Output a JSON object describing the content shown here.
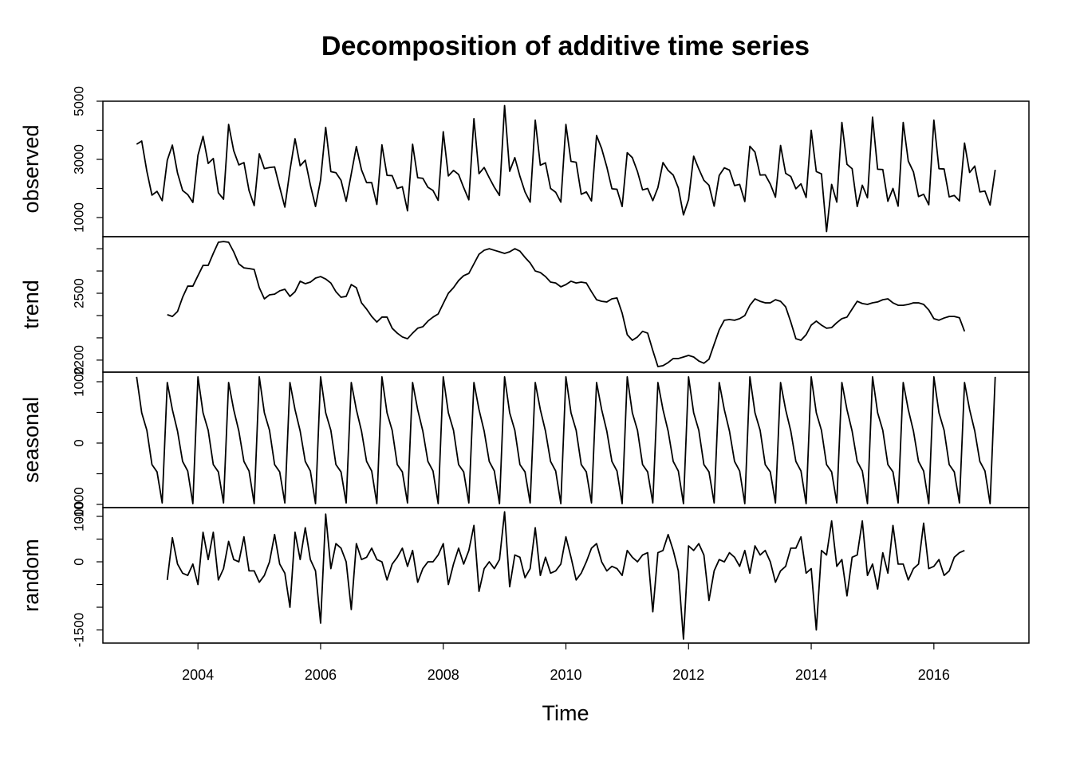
{
  "chart_data": {
    "type": "line",
    "title": "Decomposition of additive time series",
    "xlabel": "Time",
    "color": "#000000",
    "xlim": [
      2002.45,
      2017.55
    ],
    "xticks": [
      2004,
      2006,
      2008,
      2010,
      2012,
      2014,
      2016
    ],
    "x": [
      2003,
      2003.083,
      2003.167,
      2003.25,
      2003.333,
      2003.417,
      2003.5,
      2003.583,
      2003.667,
      2003.75,
      2003.833,
      2003.917,
      2004,
      2004.083,
      2004.167,
      2004.25,
      2004.333,
      2004.417,
      2004.5,
      2004.583,
      2004.667,
      2004.75,
      2004.833,
      2004.917,
      2005,
      2005.083,
      2005.167,
      2005.25,
      2005.333,
      2005.417,
      2005.5,
      2005.583,
      2005.667,
      2005.75,
      2005.833,
      2005.917,
      2006,
      2006.083,
      2006.167,
      2006.25,
      2006.333,
      2006.417,
      2006.5,
      2006.583,
      2006.667,
      2006.75,
      2006.833,
      2006.917,
      2007,
      2007.083,
      2007.167,
      2007.25,
      2007.333,
      2007.417,
      2007.5,
      2007.583,
      2007.667,
      2007.75,
      2007.833,
      2007.917,
      2008,
      2008.083,
      2008.167,
      2008.25,
      2008.333,
      2008.417,
      2008.5,
      2008.583,
      2008.667,
      2008.75,
      2008.833,
      2008.917,
      2009,
      2009.083,
      2009.167,
      2009.25,
      2009.333,
      2009.417,
      2009.5,
      2009.583,
      2009.667,
      2009.75,
      2009.833,
      2009.917,
      2010,
      2010.083,
      2010.167,
      2010.25,
      2010.333,
      2010.417,
      2010.5,
      2010.583,
      2010.667,
      2010.75,
      2010.833,
      2010.917,
      2011,
      2011.083,
      2011.167,
      2011.25,
      2011.333,
      2011.417,
      2011.5,
      2011.583,
      2011.667,
      2011.75,
      2011.833,
      2011.917,
      2012,
      2012.083,
      2012.167,
      2012.25,
      2012.333,
      2012.417,
      2012.5,
      2012.583,
      2012.667,
      2012.75,
      2012.833,
      2012.917,
      2013,
      2013.083,
      2013.167,
      2013.25,
      2013.333,
      2013.417,
      2013.5,
      2013.583,
      2013.667,
      2013.75,
      2013.833,
      2013.917,
      2014,
      2014.083,
      2014.167,
      2014.25,
      2014.333,
      2014.417,
      2014.5,
      2014.583,
      2014.667,
      2014.75,
      2014.833,
      2014.917,
      2015,
      2015.083,
      2015.167,
      2015.25,
      2015.333,
      2015.417,
      2015.5,
      2015.583,
      2015.667,
      2015.75,
      2015.833,
      2015.917,
      2016,
      2016.083,
      2016.167,
      2016.25,
      2016.333,
      2016.417,
      2016.5,
      2016.583,
      2016.667,
      2016.75,
      2016.833,
      2016.917,
      2017
    ],
    "panels": [
      {
        "ylabel": "observed",
        "ylim": [
          342,
          5000
        ],
        "yticks": [
          1000,
          3000,
          5000
        ],
        "yminorticks": [
          2000,
          4000
        ],
        "values": [
          3520,
          3630,
          2590,
          1770,
          1900,
          1580,
          2970,
          3490,
          2530,
          1930,
          1790,
          1520,
          3140,
          3790,
          2860,
          3030,
          1850,
          1630,
          4200,
          3300,
          2810,
          2890,
          1930,
          1410,
          3190,
          2680,
          2720,
          2740,
          2040,
          1360,
          2620,
          3710,
          2780,
          2970,
          2120,
          1380,
          2300,
          4100,
          2580,
          2540,
          2280,
          1560,
          2500,
          3440,
          2640,
          2200,
          2200,
          1450,
          3500,
          2450,
          2440,
          2000,
          2060,
          1230,
          3520,
          2370,
          2350,
          2040,
          1930,
          1590,
          3950,
          2430,
          2620,
          2480,
          2030,
          1610,
          4400,
          2510,
          2720,
          2370,
          2040,
          1760,
          4850,
          2590,
          3060,
          2420,
          1880,
          1530,
          4350,
          2800,
          2880,
          2000,
          1870,
          1530,
          4200,
          2930,
          2900,
          1800,
          1880,
          1570,
          3820,
          3370,
          2740,
          1990,
          1970,
          1380,
          3230,
          3060,
          2580,
          1950,
          2000,
          1580,
          2030,
          2890,
          2620,
          2460,
          2020,
          1090,
          1620,
          3110,
          2670,
          2280,
          2110,
          1390,
          2450,
          2710,
          2630,
          2100,
          2140,
          1550,
          3450,
          3250,
          2460,
          2470,
          2150,
          1700,
          3480,
          2520,
          2410,
          1990,
          2160,
          1690,
          4000,
          2580,
          2500,
          520,
          2140,
          1530,
          4270,
          2830,
          2680,
          1380,
          2110,
          1680,
          4450,
          2660,
          2650,
          1560,
          2000,
          1390,
          4270,
          2940,
          2570,
          1720,
          1800,
          1440,
          4350,
          2680,
          2670,
          1710,
          1760,
          1570,
          3560,
          2550,
          2770,
          1880,
          1910,
          1430,
          2640
        ]
      },
      {
        "ylabel": "trend",
        "ylim": [
          2146,
          2754
        ],
        "yticks": [
          2200,
          2500
        ],
        "yminorticks": [
          2300,
          2400,
          2600,
          2700
        ],
        "values": [
          null,
          null,
          null,
          null,
          null,
          null,
          2404,
          2396,
          2418,
          2482,
          2532,
          2532,
          2579,
          2625,
          2625,
          2679,
          2729,
          2732,
          2729,
          2686,
          2632,
          2614,
          2611,
          2607,
          2525,
          2475,
          2493,
          2496,
          2511,
          2518,
          2486,
          2507,
          2554,
          2543,
          2550,
          2568,
          2575,
          2564,
          2546,
          2507,
          2482,
          2486,
          2539,
          2525,
          2457,
          2429,
          2396,
          2371,
          2393,
          2393,
          2343,
          2321,
          2304,
          2296,
          2321,
          2343,
          2350,
          2375,
          2393,
          2407,
          2454,
          2500,
          2525,
          2557,
          2579,
          2589,
          2632,
          2675,
          2693,
          2700,
          2693,
          2686,
          2679,
          2686,
          2700,
          2689,
          2661,
          2636,
          2600,
          2593,
          2575,
          2550,
          2546,
          2529,
          2539,
          2554,
          2546,
          2550,
          2546,
          2507,
          2471,
          2464,
          2461,
          2475,
          2479,
          2411,
          2314,
          2289,
          2304,
          2329,
          2321,
          2243,
          2171,
          2175,
          2189,
          2207,
          2207,
          2214,
          2221,
          2214,
          2196,
          2186,
          2204,
          2271,
          2336,
          2379,
          2382,
          2379,
          2386,
          2400,
          2446,
          2475,
          2464,
          2457,
          2457,
          2471,
          2464,
          2439,
          2371,
          2296,
          2289,
          2314,
          2357,
          2375,
          2357,
          2343,
          2346,
          2368,
          2386,
          2393,
          2429,
          2464,
          2454,
          2450,
          2457,
          2461,
          2471,
          2475,
          2457,
          2446,
          2446,
          2450,
          2457,
          2457,
          2450,
          2425,
          2386,
          2379,
          2389,
          2396,
          2396,
          2390,
          2329,
          null,
          null,
          null,
          null,
          null,
          null
        ]
      },
      {
        "ylabel": "seasonal",
        "ylim": [
          -1052,
          1156
        ],
        "yticks": [
          -1000,
          0,
          1000
        ],
        "yminorticks": [
          -500,
          500
        ],
        "values": [
          1080,
          494,
          208,
          -350,
          -470,
          -975,
          987,
          545,
          195,
          -300,
          -455,
          -987,
          1080,
          494,
          208,
          -350,
          -470,
          -975,
          987,
          545,
          195,
          -300,
          -455,
          -987,
          1080,
          494,
          208,
          -350,
          -470,
          -975,
          987,
          545,
          195,
          -300,
          -455,
          -987,
          1080,
          494,
          208,
          -350,
          -470,
          -975,
          987,
          545,
          195,
          -300,
          -455,
          -987,
          1080,
          494,
          208,
          -350,
          -470,
          -975,
          987,
          545,
          195,
          -300,
          -455,
          -987,
          1080,
          494,
          208,
          -350,
          -470,
          -975,
          987,
          545,
          195,
          -300,
          -455,
          -987,
          1080,
          494,
          208,
          -350,
          -470,
          -975,
          987,
          545,
          195,
          -300,
          -455,
          -987,
          1080,
          494,
          208,
          -350,
          -470,
          -975,
          987,
          545,
          195,
          -300,
          -455,
          -987,
          1080,
          494,
          208,
          -350,
          -470,
          -975,
          987,
          545,
          195,
          -300,
          -455,
          -987,
          1080,
          494,
          208,
          -350,
          -470,
          -975,
          987,
          545,
          195,
          -300,
          -455,
          -987,
          1080,
          494,
          208,
          -350,
          -470,
          -975,
          987,
          545,
          195,
          -300,
          -455,
          -987,
          1080,
          494,
          208,
          -350,
          -470,
          -975,
          987,
          545,
          195,
          -300,
          -455,
          -987,
          1080,
          494,
          208,
          -350,
          -470,
          -975,
          987,
          545,
          195,
          -300,
          -455,
          -987,
          1080,
          494,
          208,
          -350,
          -470,
          -975,
          987,
          545,
          195,
          -300,
          -455,
          -987,
          1080
        ]
      },
      {
        "ylabel": "random",
        "ylim": [
          -1789,
          1193
        ],
        "yticks": [
          -1500,
          0,
          1000
        ],
        "yminorticks": [
          -1000,
          -500,
          500
        ],
        "values": [
          null,
          null,
          null,
          null,
          null,
          null,
          -400,
          530,
          -50,
          -250,
          -300,
          -50,
          -500,
          650,
          50,
          650,
          -400,
          -150,
          450,
          50,
          0,
          550,
          -200,
          -200,
          -450,
          -300,
          0,
          600,
          -50,
          -250,
          -1000,
          650,
          50,
          750,
          50,
          -200,
          -1350,
          1050,
          -150,
          400,
          300,
          0,
          -1050,
          400,
          50,
          100,
          300,
          50,
          0,
          -400,
          -50,
          100,
          300,
          -100,
          250,
          -450,
          -150,
          0,
          0,
          150,
          400,
          -500,
          -50,
          300,
          -50,
          250,
          800,
          -650,
          -150,
          0,
          -150,
          50,
          1100,
          -550,
          150,
          100,
          -350,
          -150,
          750,
          -300,
          100,
          -250,
          -200,
          -50,
          550,
          100,
          -400,
          -250,
          0,
          300,
          400,
          0,
          -200,
          -100,
          -150,
          -300,
          250,
          100,
          0,
          150,
          200,
          -1100,
          200,
          250,
          600,
          250,
          -200,
          -1700,
          350,
          250,
          400,
          150,
          -850,
          -200,
          50,
          0,
          200,
          100,
          -100,
          250,
          -250,
          350,
          150,
          250,
          0,
          -450,
          -200,
          -100,
          300,
          300,
          550,
          -250,
          -150,
          -1500,
          250,
          150,
          900,
          -100,
          50,
          -750,
          100,
          150,
          900,
          -300,
          -50,
          -600,
          200,
          -250,
          800,
          -50,
          -50,
          -400,
          -150,
          -50,
          850,
          -150,
          -100,
          50,
          -300,
          -200,
          100,
          200,
          250,
          null,
          null,
          null,
          null,
          null,
          null
        ]
      }
    ]
  }
}
